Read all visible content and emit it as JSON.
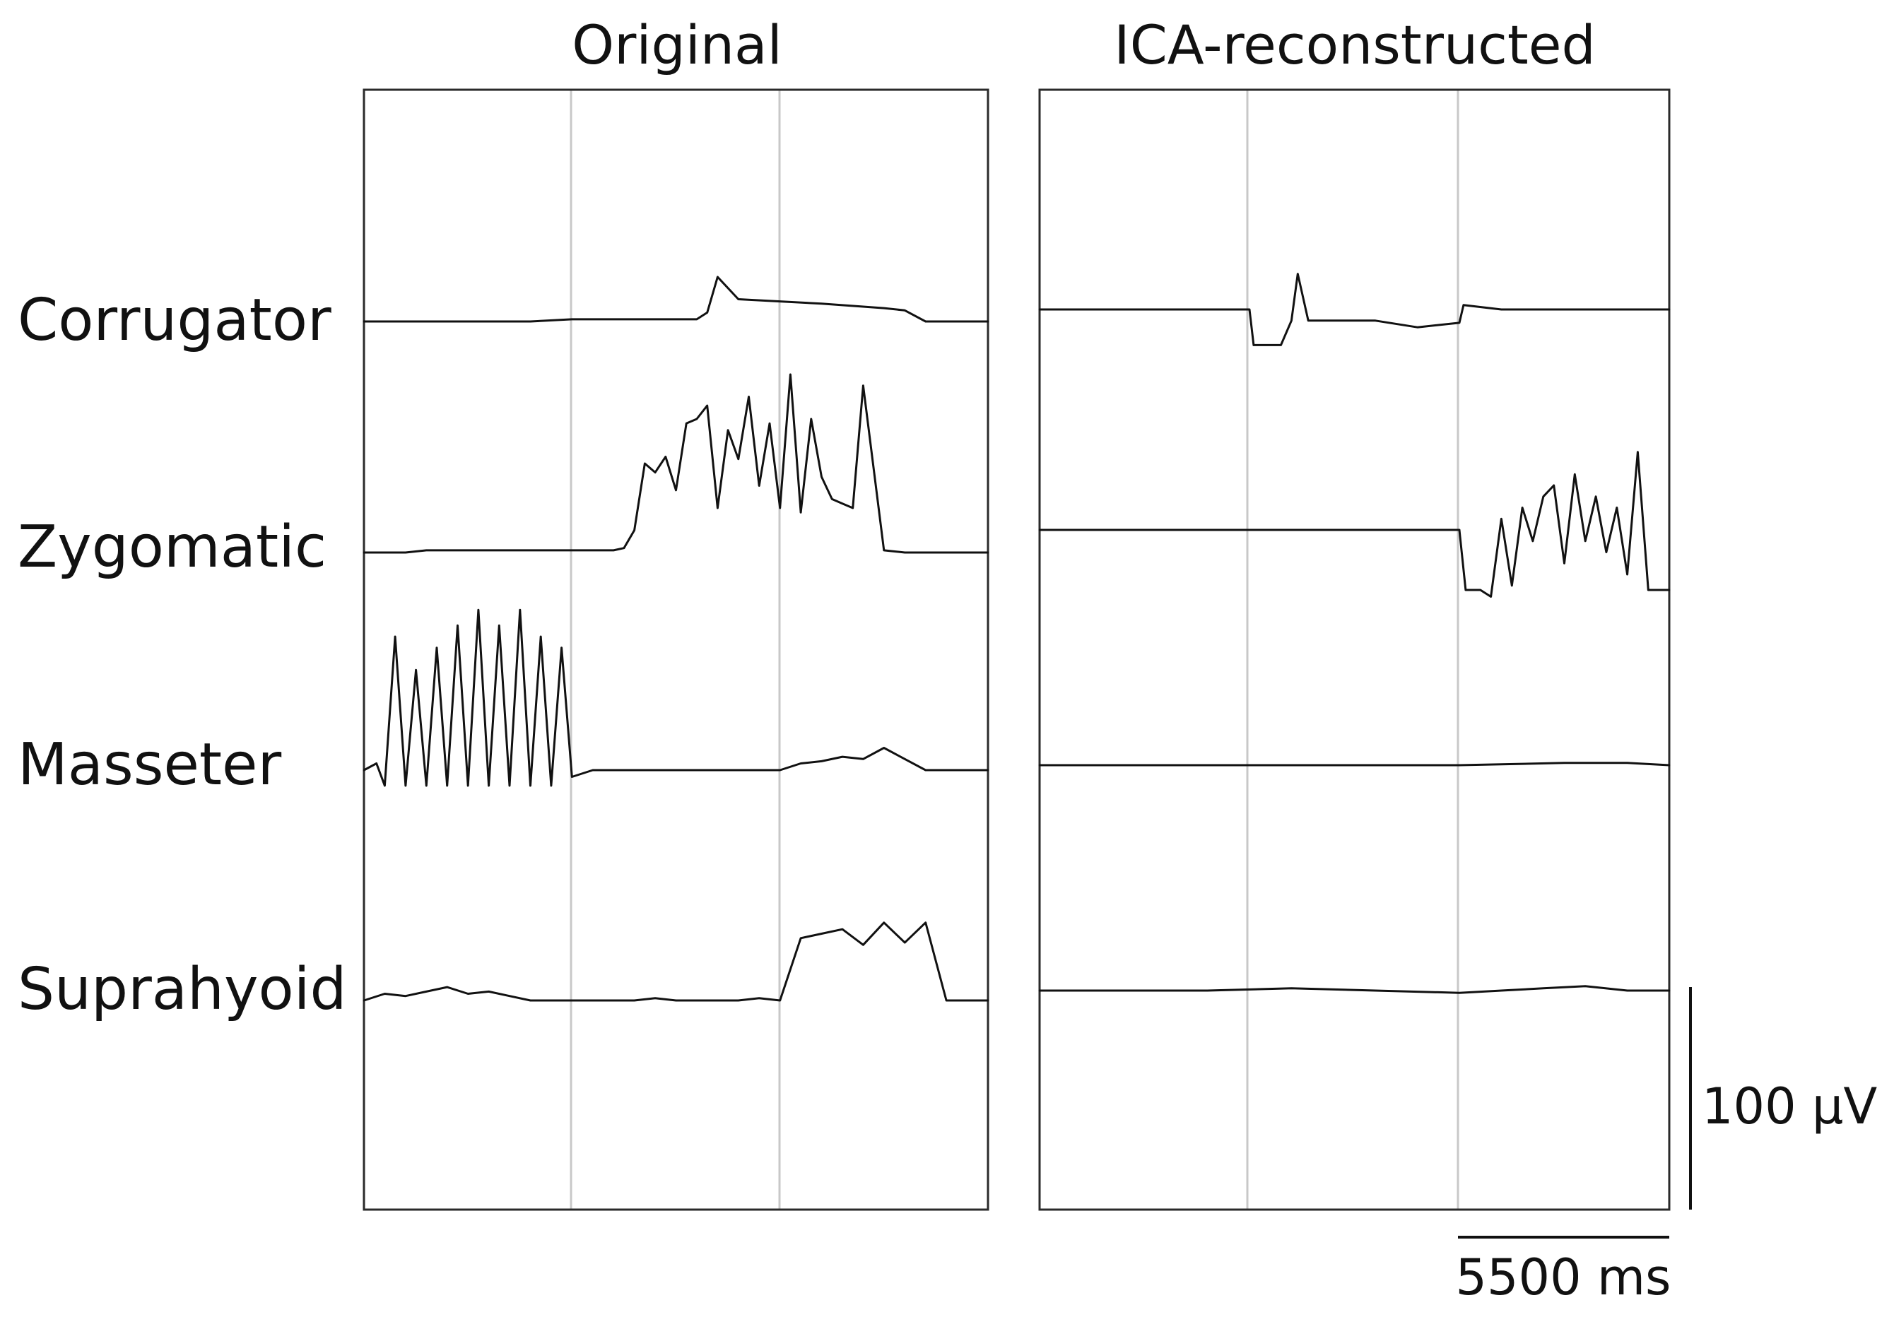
{
  "chart_data": {
    "type": "line",
    "panels": [
      {
        "title": "Original",
        "series": [
          {
            "name": "Corrugator",
            "x": [
              0,
              5,
              8,
              10,
              11,
              12,
              16,
              16.5,
              17,
              18,
              20,
              22,
              25,
              26,
              27,
              28,
              30
            ],
            "y": [
              0,
              0,
              0,
              1,
              1,
              1,
              1,
              4,
              20,
              10,
              9,
              8,
              6,
              5,
              0,
              0,
              0
            ]
          },
          {
            "name": "Zygomatic",
            "x": [
              0,
              1,
              2,
              3,
              4,
              5,
              6,
              8,
              10,
              12,
              12.5,
              13,
              13.5,
              14,
              14.5,
              15,
              15.5,
              16,
              16.5,
              17,
              17.5,
              18,
              18.5,
              19,
              19.5,
              20,
              20.5,
              21,
              21.5,
              22,
              22.5,
              23,
              23.5,
              24,
              25,
              26,
              27,
              28,
              30
            ],
            "y": [
              0,
              0,
              0,
              1,
              1,
              1,
              1,
              1,
              1,
              1,
              2,
              10,
              40,
              36,
              43,
              28,
              58,
              60,
              66,
              20,
              55,
              42,
              70,
              30,
              58,
              20,
              80,
              18,
              60,
              34,
              24,
              22,
              20,
              75,
              1,
              0,
              0,
              0,
              0
            ]
          },
          {
            "name": "Masseter",
            "x": [
              0,
              0.6,
              1,
              1.5,
              2,
              2.5,
              3,
              3.5,
              4,
              4.5,
              5,
              5.5,
              6,
              6.5,
              7,
              7.5,
              8,
              8.5,
              9,
              9.5,
              10,
              11,
              13,
              15,
              17,
              19,
              20,
              21,
              22,
              23,
              24,
              25,
              26,
              27,
              28,
              30
            ],
            "y": [
              0,
              3,
              -7,
              60,
              -7,
              45,
              -7,
              55,
              -7,
              65,
              -7,
              72,
              -7,
              65,
              -7,
              72,
              -7,
              60,
              -7,
              55,
              -3,
              0,
              0,
              0,
              0,
              0,
              0,
              3,
              4,
              6,
              5,
              10,
              5,
              0,
              0,
              0
            ]
          },
          {
            "name": "Suprahyoid",
            "x": [
              0,
              1,
              2,
              3,
              4,
              5,
              6,
              7,
              8,
              9,
              10,
              11,
              12,
              13,
              14,
              15,
              16,
              17,
              18,
              19,
              20,
              21,
              22,
              23,
              24,
              25,
              26,
              27,
              28,
              29,
              30
            ],
            "y": [
              0,
              3,
              2,
              4,
              6,
              3,
              4,
              2,
              0,
              0,
              0,
              0,
              0,
              0,
              1,
              0,
              0,
              0,
              0,
              1,
              0,
              28,
              30,
              32,
              25,
              35,
              26,
              35,
              0,
              0,
              0
            ]
          }
        ]
      },
      {
        "title": "ICA-reconstructed",
        "series": [
          {
            "name": "Corrugator",
            "x": [
              0,
              4,
              8,
              10,
              10.2,
              11,
              11.5,
              12,
              12.3,
              12.8,
              16,
              18,
              20,
              20.2,
              22,
              25,
              28,
              30
            ],
            "y": [
              0,
              0,
              0,
              0,
              -16,
              -16,
              -16,
              -5,
              16,
              -5,
              -5,
              -8,
              -6,
              2,
              0,
              0,
              0,
              0
            ]
          },
          {
            "name": "Zygomatic",
            "x": [
              0,
              3,
              6,
              9,
              12,
              15,
              18,
              20,
              20.3,
              21,
              21.5,
              22,
              22.5,
              23,
              23.5,
              24,
              24.5,
              25,
              25.5,
              26,
              26.5,
              27,
              27.5,
              28,
              28.5,
              29,
              29.5,
              30
            ],
            "y": [
              0,
              0,
              0,
              0,
              0,
              0,
              0,
              0,
              -27,
              -27,
              -30,
              5,
              -25,
              10,
              -5,
              15,
              20,
              -15,
              25,
              -5,
              15,
              -10,
              10,
              -20,
              35,
              -27,
              -27,
              -27
            ]
          },
          {
            "name": "Masseter",
            "x": [
              0,
              5,
              10,
              15,
              20,
              25,
              28,
              30
            ],
            "y": [
              0,
              0,
              0,
              0,
              0,
              1,
              1,
              0
            ]
          },
          {
            "name": "Suprahyoid",
            "x": [
              0,
              4,
              8,
              12,
              16,
              20,
              22,
              24,
              26,
              28,
              30
            ],
            "y": [
              0,
              0,
              0,
              1,
              0,
              -1,
              0,
              1,
              2,
              0,
              0
            ]
          }
        ]
      }
    ],
    "row_labels": [
      "Corrugator",
      "Zygomatic",
      "Masseter",
      "Suprahyoid"
    ],
    "scale_bar_amplitude": "100 µV",
    "scale_bar_time": "5500 ms",
    "grid": true
  }
}
